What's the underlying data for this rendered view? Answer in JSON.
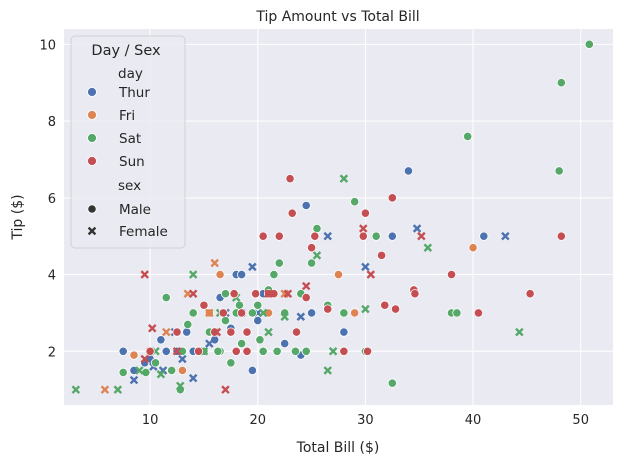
{
  "chart_data": {
    "type": "scatter",
    "title": "Tip Amount vs Total Bill",
    "xlabel": "Total Bill ($)",
    "ylabel": "Tip ($)",
    "xlim": [
      2.0,
      53.0
    ],
    "ylim": [
      0.6,
      10.4
    ],
    "xticks": [
      10,
      20,
      30,
      40,
      50
    ],
    "yticks": [
      2,
      4,
      6,
      8,
      10
    ],
    "grid": true,
    "legend": {
      "title": "Day / Sex",
      "placement": "top-left",
      "day_header": "day",
      "sex_header": "sex",
      "days": [
        {
          "label": "Thur",
          "color": "#4c72b0"
        },
        {
          "label": "Fri",
          "color": "#dd8452"
        },
        {
          "label": "Sat",
          "color": "#55a868"
        },
        {
          "label": "Sun",
          "color": "#c44e52"
        }
      ],
      "sexes": [
        {
          "label": "Male",
          "marker": "circle"
        },
        {
          "label": "Female",
          "marker": "x"
        }
      ]
    },
    "colors": {
      "background": "#eaeaf2",
      "grid": "#ffffff"
    },
    "series": [
      {
        "name": "Thur",
        "color": "#4c72b0",
        "points": [
          [
            7.5,
            2.0,
            "M"
          ],
          [
            8.5,
            1.5,
            "M"
          ],
          [
            9.5,
            1.7,
            "M"
          ],
          [
            10.0,
            1.8,
            "M"
          ],
          [
            11.0,
            2.3,
            "M"
          ],
          [
            11.5,
            2.0,
            "M"
          ],
          [
            12.5,
            2.0,
            "M"
          ],
          [
            13.0,
            2.0,
            "M"
          ],
          [
            13.4,
            2.5,
            "M"
          ],
          [
            14.0,
            2.0,
            "M"
          ],
          [
            15.0,
            2.0,
            "M"
          ],
          [
            16.0,
            2.3,
            "M"
          ],
          [
            16.5,
            3.4,
            "M"
          ],
          [
            17.5,
            2.6,
            "M"
          ],
          [
            18.0,
            4.0,
            "M"
          ],
          [
            18.5,
            4.0,
            "M"
          ],
          [
            19.5,
            1.5,
            "M"
          ],
          [
            20.0,
            2.8,
            "M"
          ],
          [
            20.5,
            3.5,
            "M"
          ],
          [
            22.5,
            2.2,
            "M"
          ],
          [
            24.0,
            1.9,
            "M"
          ],
          [
            24.5,
            5.8,
            "M"
          ],
          [
            25.0,
            3.0,
            "M"
          ],
          [
            28.0,
            2.5,
            "M"
          ],
          [
            32.5,
            5.0,
            "M"
          ],
          [
            34.0,
            6.7,
            "M"
          ],
          [
            41.0,
            5.0,
            "M"
          ],
          [
            8.5,
            1.25,
            "F"
          ],
          [
            10.3,
            1.6,
            "F"
          ],
          [
            11.2,
            1.5,
            "F"
          ],
          [
            12.3,
            2.5,
            "F"
          ],
          [
            13.0,
            1.8,
            "F"
          ],
          [
            14.0,
            1.3,
            "F"
          ],
          [
            15.5,
            2.2,
            "F"
          ],
          [
            16.0,
            2.5,
            "F"
          ],
          [
            17.0,
            3.0,
            "F"
          ],
          [
            18.5,
            3.0,
            "F"
          ],
          [
            19.5,
            4.2,
            "F"
          ],
          [
            20.0,
            3.0,
            "F"
          ],
          [
            24.0,
            2.9,
            "F"
          ],
          [
            26.5,
            5.0,
            "F"
          ],
          [
            30.0,
            4.2,
            "F"
          ],
          [
            34.8,
            5.2,
            "F"
          ],
          [
            43.0,
            5.0,
            "F"
          ]
        ]
      },
      {
        "name": "Fri",
        "color": "#dd8452",
        "points": [
          [
            8.5,
            1.9,
            "M"
          ],
          [
            13.0,
            1.5,
            "M"
          ],
          [
            15.5,
            3.0,
            "M"
          ],
          [
            16.5,
            4.0,
            "M"
          ],
          [
            18.0,
            2.0,
            "M"
          ],
          [
            21.0,
            3.0,
            "M"
          ],
          [
            24.5,
            2.0,
            "M"
          ],
          [
            27.5,
            4.0,
            "M"
          ],
          [
            29.0,
            3.0,
            "M"
          ],
          [
            40.0,
            4.7,
            "M"
          ],
          [
            5.8,
            1.0,
            "F"
          ],
          [
            10.0,
            2.0,
            "F"
          ],
          [
            11.5,
            2.5,
            "F"
          ],
          [
            13.5,
            3.5,
            "F"
          ],
          [
            15.5,
            3.0,
            "F"
          ],
          [
            16.0,
            4.3,
            "F"
          ],
          [
            22.5,
            3.5,
            "F"
          ]
        ]
      },
      {
        "name": "Sat",
        "color": "#55a868",
        "points": [
          [
            7.5,
            1.45,
            "M"
          ],
          [
            9.6,
            1.45,
            "M"
          ],
          [
            10.5,
            1.7,
            "M"
          ],
          [
            11.5,
            3.4,
            "M"
          ],
          [
            12.0,
            1.5,
            "M"
          ],
          [
            13.0,
            2.0,
            "M"
          ],
          [
            13.5,
            2.7,
            "M"
          ],
          [
            14.0,
            3.0,
            "M"
          ],
          [
            15.0,
            2.0,
            "M"
          ],
          [
            15.5,
            2.5,
            "M"
          ],
          [
            16.5,
            2.0,
            "M"
          ],
          [
            17.0,
            3.5,
            "M"
          ],
          [
            17.5,
            1.7,
            "M"
          ],
          [
            18.0,
            3.0,
            "M"
          ],
          [
            18.5,
            2.2,
            "M"
          ],
          [
            19.0,
            2.5,
            "M"
          ],
          [
            19.5,
            3.0,
            "M"
          ],
          [
            20.0,
            3.2,
            "M"
          ],
          [
            20.5,
            2.0,
            "M"
          ],
          [
            21.0,
            3.6,
            "M"
          ],
          [
            21.5,
            4.0,
            "M"
          ],
          [
            22.0,
            4.3,
            "M"
          ],
          [
            22.5,
            3.0,
            "M"
          ],
          [
            23.5,
            2.0,
            "M"
          ],
          [
            24.0,
            3.5,
            "M"
          ],
          [
            25.0,
            4.3,
            "M"
          ],
          [
            25.5,
            5.2,
            "M"
          ],
          [
            26.5,
            3.2,
            "M"
          ],
          [
            28.0,
            3.0,
            "M"
          ],
          [
            29.0,
            5.9,
            "M"
          ],
          [
            30.0,
            2.0,
            "M"
          ],
          [
            31.0,
            5.0,
            "M"
          ],
          [
            32.5,
            1.17,
            "M"
          ],
          [
            38.0,
            3.0,
            "M"
          ],
          [
            38.5,
            3.0,
            "M"
          ],
          [
            39.5,
            7.6,
            "M"
          ],
          [
            48.0,
            6.7,
            "M"
          ],
          [
            48.2,
            9.0,
            "M"
          ],
          [
            50.8,
            10.0,
            "M"
          ],
          [
            17.0,
            2.8,
            "M"
          ],
          [
            18.3,
            3.2,
            "M"
          ],
          [
            20.2,
            2.3,
            "M"
          ],
          [
            12.8,
            1.0,
            "M"
          ],
          [
            16.3,
            2.0,
            "M"
          ],
          [
            21.8,
            2.0,
            "M"
          ],
          [
            24.5,
            2.0,
            "M"
          ],
          [
            3.1,
            1.0,
            "F"
          ],
          [
            7.0,
            1.0,
            "F"
          ],
          [
            9.0,
            1.5,
            "F"
          ],
          [
            10.5,
            2.0,
            "F"
          ],
          [
            11.0,
            1.4,
            "F"
          ],
          [
            12.8,
            1.1,
            "F"
          ],
          [
            14.0,
            4.0,
            "F"
          ],
          [
            15.0,
            2.0,
            "F"
          ],
          [
            16.5,
            3.0,
            "F"
          ],
          [
            18.0,
            3.4,
            "F"
          ],
          [
            20.5,
            3.0,
            "F"
          ],
          [
            21.0,
            2.5,
            "F"
          ],
          [
            22.5,
            2.9,
            "F"
          ],
          [
            25.5,
            4.5,
            "F"
          ],
          [
            26.5,
            1.5,
            "F"
          ],
          [
            27.0,
            2.0,
            "F"
          ],
          [
            28.0,
            6.5,
            "F"
          ],
          [
            30.0,
            3.1,
            "F"
          ],
          [
            35.8,
            4.7,
            "F"
          ],
          [
            44.3,
            2.5,
            "F"
          ]
        ]
      },
      {
        "name": "Sun",
        "color": "#c44e52",
        "points": [
          [
            10.0,
            2.0,
            "M"
          ],
          [
            12.5,
            2.5,
            "M"
          ],
          [
            14.5,
            2.0,
            "M"
          ],
          [
            15.0,
            3.2,
            "M"
          ],
          [
            16.0,
            2.5,
            "M"
          ],
          [
            16.8,
            3.0,
            "M"
          ],
          [
            17.5,
            2.5,
            "M"
          ],
          [
            17.8,
            3.5,
            "M"
          ],
          [
            18.0,
            2.0,
            "M"
          ],
          [
            18.5,
            3.0,
            "M"
          ],
          [
            19.0,
            2.5,
            "M"
          ],
          [
            19.8,
            3.5,
            "M"
          ],
          [
            20.5,
            5.0,
            "M"
          ],
          [
            21.0,
            3.5,
            "M"
          ],
          [
            22.0,
            5.0,
            "M"
          ],
          [
            23.0,
            6.5,
            "M"
          ],
          [
            23.2,
            5.6,
            "M"
          ],
          [
            23.6,
            2.5,
            "M"
          ],
          [
            24.5,
            3.4,
            "M"
          ],
          [
            25.0,
            4.7,
            "M"
          ],
          [
            25.3,
            5.0,
            "M"
          ],
          [
            26.5,
            3.1,
            "M"
          ],
          [
            28.0,
            2.0,
            "M"
          ],
          [
            30.0,
            5.6,
            "M"
          ],
          [
            30.2,
            2.0,
            "M"
          ],
          [
            31.5,
            4.5,
            "M"
          ],
          [
            31.8,
            3.2,
            "M"
          ],
          [
            32.5,
            6.0,
            "M"
          ],
          [
            32.8,
            3.1,
            "M"
          ],
          [
            34.5,
            3.6,
            "M"
          ],
          [
            34.6,
            3.5,
            "M"
          ],
          [
            38.0,
            4.0,
            "M"
          ],
          [
            40.5,
            3.0,
            "M"
          ],
          [
            45.3,
            3.5,
            "M"
          ],
          [
            48.2,
            5.0,
            "M"
          ],
          [
            29.8,
            5.0,
            "M"
          ],
          [
            21.5,
            3.5,
            "M"
          ],
          [
            19.0,
            2.0,
            "M"
          ],
          [
            9.5,
            4.0,
            "F"
          ],
          [
            9.5,
            1.8,
            "F"
          ],
          [
            10.2,
            2.6,
            "F"
          ],
          [
            12.5,
            2.0,
            "F"
          ],
          [
            14.0,
            3.5,
            "F"
          ],
          [
            16.2,
            2.5,
            "F"
          ],
          [
            17.0,
            1.0,
            "F"
          ],
          [
            21.0,
            3.5,
            "F"
          ],
          [
            22.8,
            3.5,
            "F"
          ],
          [
            24.5,
            3.7,
            "F"
          ],
          [
            29.8,
            5.2,
            "F"
          ],
          [
            35.2,
            5.0,
            "F"
          ],
          [
            30.5,
            4.0,
            "F"
          ]
        ]
      }
    ]
  }
}
